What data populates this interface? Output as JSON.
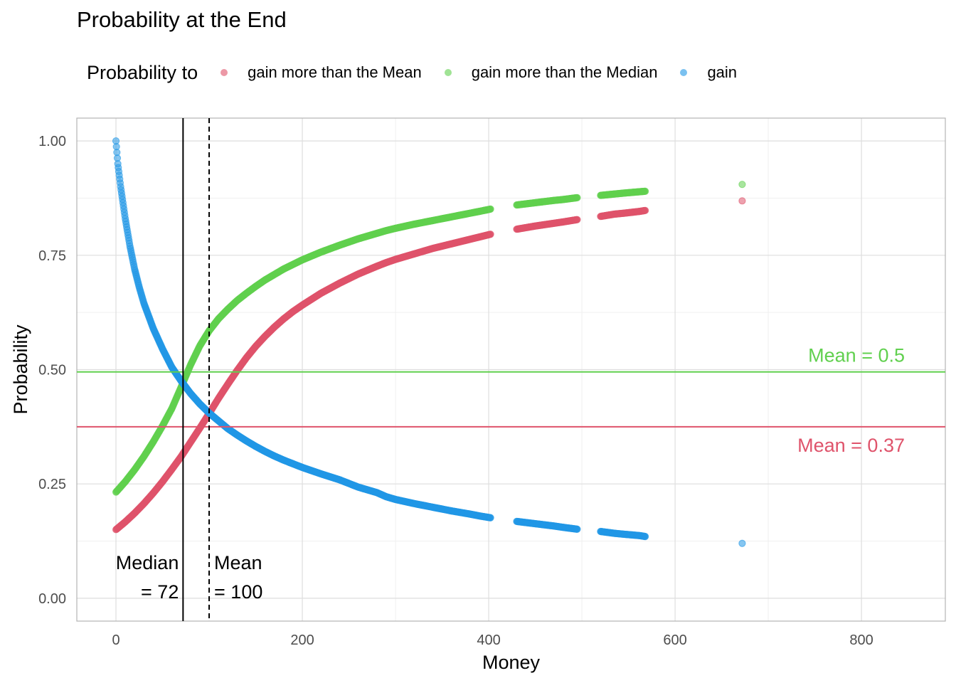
{
  "chart_data": {
    "type": "scatter",
    "title": "Probability at the End",
    "xlabel": "Money",
    "ylabel": "Probability",
    "xlim": [
      -42,
      890
    ],
    "ylim": [
      -0.05,
      1.05
    ],
    "x_ticks": [
      0,
      200,
      400,
      600,
      800
    ],
    "x_tick_labels": [
      "0",
      "200",
      "400",
      "600",
      "800"
    ],
    "y_ticks": [
      0,
      0.25,
      0.5,
      0.75,
      1.0
    ],
    "y_tick_labels": [
      "0.00",
      "0.25",
      "0.50",
      "0.75",
      "1.00"
    ],
    "grid": true,
    "legend": {
      "title": "Probability to",
      "position": "top"
    },
    "series": [
      {
        "name": "gain more than the Mean",
        "color": "#df536b",
        "points": [
          [
            0,
            0.15
          ],
          [
            10,
            0.167
          ],
          [
            20,
            0.186
          ],
          [
            30,
            0.207
          ],
          [
            40,
            0.23
          ],
          [
            50,
            0.255
          ],
          [
            60,
            0.282
          ],
          [
            70,
            0.31
          ],
          [
            80,
            0.341
          ],
          [
            90,
            0.372
          ],
          [
            100,
            0.404
          ],
          [
            110,
            0.437
          ],
          [
            120,
            0.468
          ],
          [
            130,
            0.498
          ],
          [
            140,
            0.526
          ],
          [
            150,
            0.551
          ],
          [
            160,
            0.573
          ],
          [
            170,
            0.593
          ],
          [
            180,
            0.611
          ],
          [
            190,
            0.627
          ],
          [
            200,
            0.641
          ],
          [
            220,
            0.667
          ],
          [
            240,
            0.689
          ],
          [
            260,
            0.709
          ],
          [
            280,
            0.726
          ],
          [
            290,
            0.734
          ],
          [
            300,
            0.741
          ],
          [
            320,
            0.753
          ],
          [
            340,
            0.765
          ],
          [
            360,
            0.775
          ],
          [
            380,
            0.785
          ],
          [
            390,
            0.79
          ],
          [
            402,
            0.796
          ],
          [
            430,
            0.807
          ],
          [
            450,
            0.814
          ],
          [
            470,
            0.82
          ],
          [
            480,
            0.823
          ],
          [
            495,
            0.828
          ],
          [
            520,
            0.835
          ],
          [
            535,
            0.84
          ],
          [
            545,
            0.842
          ],
          [
            562,
            0.846
          ],
          [
            568,
            0.848
          ],
          [
            672,
            0.869
          ]
        ]
      },
      {
        "name": "gain more than the Median",
        "color": "#61d04f",
        "points": [
          [
            0,
            0.232
          ],
          [
            10,
            0.255
          ],
          [
            20,
            0.281
          ],
          [
            30,
            0.31
          ],
          [
            40,
            0.342
          ],
          [
            50,
            0.377
          ],
          [
            60,
            0.415
          ],
          [
            70,
            0.462
          ],
          [
            80,
            0.51
          ],
          [
            90,
            0.552
          ],
          [
            100,
            0.585
          ],
          [
            110,
            0.611
          ],
          [
            120,
            0.632
          ],
          [
            130,
            0.651
          ],
          [
            140,
            0.667
          ],
          [
            150,
            0.682
          ],
          [
            160,
            0.696
          ],
          [
            170,
            0.708
          ],
          [
            180,
            0.72
          ],
          [
            190,
            0.73
          ],
          [
            200,
            0.74
          ],
          [
            220,
            0.757
          ],
          [
            240,
            0.772
          ],
          [
            260,
            0.786
          ],
          [
            280,
            0.798
          ],
          [
            290,
            0.804
          ],
          [
            300,
            0.809
          ],
          [
            320,
            0.818
          ],
          [
            340,
            0.826
          ],
          [
            360,
            0.834
          ],
          [
            380,
            0.842
          ],
          [
            390,
            0.846
          ],
          [
            402,
            0.851
          ],
          [
            430,
            0.86
          ],
          [
            450,
            0.865
          ],
          [
            470,
            0.87
          ],
          [
            480,
            0.872
          ],
          [
            495,
            0.876
          ],
          [
            520,
            0.881
          ],
          [
            535,
            0.884
          ],
          [
            545,
            0.886
          ],
          [
            562,
            0.889
          ],
          [
            568,
            0.89
          ],
          [
            672,
            0.905
          ]
        ]
      },
      {
        "name": "gain",
        "color": "#2297e6",
        "points": [
          [
            0,
            1.0
          ],
          [
            2,
            0.95
          ],
          [
            5,
            0.9
          ],
          [
            10,
            0.83
          ],
          [
            15,
            0.77
          ],
          [
            20,
            0.72
          ],
          [
            25,
            0.68
          ],
          [
            30,
            0.645
          ],
          [
            40,
            0.59
          ],
          [
            50,
            0.545
          ],
          [
            60,
            0.505
          ],
          [
            70,
            0.475
          ],
          [
            80,
            0.448
          ],
          [
            90,
            0.425
          ],
          [
            100,
            0.405
          ],
          [
            110,
            0.388
          ],
          [
            120,
            0.371
          ],
          [
            130,
            0.357
          ],
          [
            140,
            0.344
          ],
          [
            150,
            0.332
          ],
          [
            160,
            0.321
          ],
          [
            170,
            0.311
          ],
          [
            180,
            0.302
          ],
          [
            190,
            0.294
          ],
          [
            200,
            0.286
          ],
          [
            220,
            0.272
          ],
          [
            240,
            0.259
          ],
          [
            260,
            0.243
          ],
          [
            280,
            0.231
          ],
          [
            290,
            0.222
          ],
          [
            300,
            0.216
          ],
          [
            320,
            0.207
          ],
          [
            340,
            0.199
          ],
          [
            360,
            0.191
          ],
          [
            380,
            0.184
          ],
          [
            390,
            0.18
          ],
          [
            402,
            0.176
          ],
          [
            430,
            0.168
          ],
          [
            450,
            0.163
          ],
          [
            470,
            0.158
          ],
          [
            480,
            0.155
          ],
          [
            495,
            0.151
          ],
          [
            520,
            0.146
          ],
          [
            535,
            0.142
          ],
          [
            545,
            0.14
          ],
          [
            562,
            0.137
          ],
          [
            568,
            0.135
          ],
          [
            672,
            0.12
          ]
        ]
      }
    ],
    "vlines": [
      {
        "x": 72,
        "style": "solid",
        "color": "#000000",
        "label_line1": "Median",
        "label_line2": "= 72"
      },
      {
        "x": 100,
        "style": "dashed",
        "color": "#000000",
        "label_line1": "Mean",
        "label_line2": "= 100"
      }
    ],
    "hlines": [
      {
        "y": 0.495,
        "color": "#61d04f",
        "label": "Mean = 0.5"
      },
      {
        "y": 0.375,
        "color": "#df536b",
        "label": "Mean = 0.37"
      }
    ]
  }
}
